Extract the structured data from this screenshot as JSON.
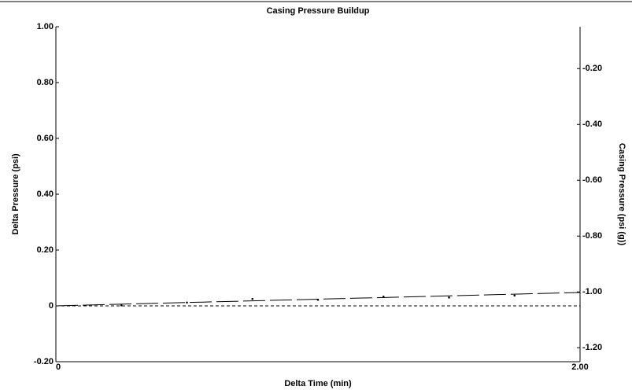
{
  "chart_data": {
    "type": "line",
    "title": "Casing Pressure Buildup",
    "xlabel": "Delta Time (min)",
    "ylabel": "Delta Pressure (psi)",
    "y2label": "Casing Pressure (psi (g))",
    "xlim": [
      0,
      2
    ],
    "xticks": [
      0,
      {
        "value": 2,
        "label": "2.00"
      }
    ],
    "ylim": [
      -0.2,
      1.0
    ],
    "yticks": [
      {
        "value": -0.2,
        "label": "-0.20"
      },
      0,
      {
        "value": 0.2,
        "label": "0.20"
      },
      {
        "value": 0.4,
        "label": "0.40"
      },
      {
        "value": 0.6,
        "label": "0.60"
      },
      {
        "value": 0.8,
        "label": "0.80"
      },
      {
        "value": 1.0,
        "label": "1.00"
      }
    ],
    "y2lim": [
      -1.25,
      -0.05
    ],
    "y2ticks": [
      {
        "value": -1.2,
        "label": "-1.20"
      },
      {
        "value": -1.0,
        "label": "-1.00"
      },
      {
        "value": -0.8,
        "label": "-0.80"
      },
      {
        "value": -0.6,
        "label": "-0.60"
      },
      {
        "value": -0.4,
        "label": "-0.40"
      },
      {
        "value": -0.2,
        "label": "-0.20"
      }
    ],
    "series": [
      {
        "style": "points",
        "color": "#000000",
        "x": [
          0.25,
          0.5,
          0.75,
          1.0,
          1.25,
          1.5,
          1.75
        ],
        "values": [
          0.002,
          0.012,
          0.025,
          0.022,
          0.033,
          0.03,
          0.037
        ]
      },
      {
        "style": "long-dash",
        "color": "#000000",
        "x": [
          0,
          2
        ],
        "values": [
          0,
          0.048
        ]
      },
      {
        "style": "dash",
        "color": "#000000",
        "x": [
          0,
          2
        ],
        "values": [
          0,
          0
        ]
      }
    ]
  }
}
